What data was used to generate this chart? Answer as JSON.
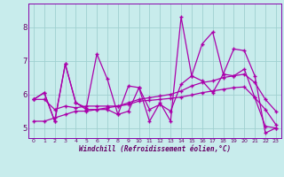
{
  "title": "",
  "xlabel": "Windchill (Refroidissement éolien,°C)",
  "x_values": [
    0,
    1,
    2,
    3,
    4,
    5,
    6,
    7,
    8,
    9,
    10,
    11,
    12,
    13,
    14,
    15,
    16,
    17,
    18,
    19,
    20,
    21,
    22,
    23
  ],
  "line1_y": [
    5.85,
    6.05,
    5.2,
    6.9,
    5.75,
    5.6,
    7.2,
    6.45,
    5.4,
    6.25,
    6.2,
    5.2,
    5.75,
    5.2,
    8.3,
    6.55,
    7.5,
    7.85,
    6.6,
    7.35,
    7.3,
    6.55,
    4.85,
    5.0
  ],
  "line2_y": [
    5.85,
    6.05,
    5.2,
    6.9,
    5.75,
    5.55,
    5.55,
    5.55,
    5.4,
    5.5,
    6.2,
    5.55,
    5.7,
    5.5,
    6.3,
    6.55,
    6.4,
    6.05,
    6.6,
    6.55,
    6.75,
    5.9,
    5.05,
    5.0
  ],
  "line3_y": [
    5.85,
    5.85,
    5.55,
    5.65,
    5.6,
    5.65,
    5.65,
    5.65,
    5.65,
    5.75,
    5.85,
    5.9,
    5.95,
    6.0,
    6.1,
    6.25,
    6.35,
    6.4,
    6.5,
    6.55,
    6.6,
    6.35,
    5.85,
    5.5
  ],
  "line4_y": [
    5.2,
    5.2,
    5.3,
    5.4,
    5.5,
    5.5,
    5.55,
    5.6,
    5.65,
    5.7,
    5.8,
    5.82,
    5.85,
    5.88,
    5.92,
    5.98,
    6.05,
    6.1,
    6.15,
    6.2,
    6.22,
    5.9,
    5.55,
    5.1
  ],
  "line_color": "#aa00aa",
  "bg_color": "#c8ecec",
  "grid_color": "#a0d0d0",
  "ylim": [
    4.7,
    8.7
  ],
  "yticks": [
    5,
    6,
    7,
    8
  ],
  "xtick_labels": [
    "0",
    "1",
    "2",
    "3",
    "4",
    "5",
    "6",
    "7",
    "8",
    "9",
    "10",
    "11",
    "12",
    "13",
    "14",
    "15",
    "16",
    "17",
    "18",
    "19",
    "20",
    "21",
    "22",
    "23"
  ],
  "xlabel_color": "#660066",
  "spine_color": "#8800aa",
  "tick_color": "#660066"
}
